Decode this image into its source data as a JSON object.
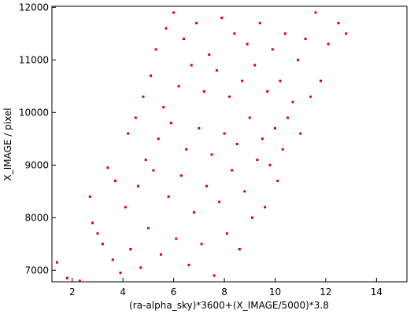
{
  "chart_data": {
    "type": "scatter",
    "title": "",
    "xlabel": "(ra-alpha_sky)*3600+(X_IMAGE/5000)*3.8",
    "ylabel": "X_IMAGE / pixel",
    "xlim": [
      1.2,
      15.2
    ],
    "ylim": [
      6780,
      12020
    ],
    "xticks": [
      2,
      4,
      6,
      8,
      10,
      12,
      14
    ],
    "yticks": [
      7000,
      8000,
      9000,
      10000,
      11000,
      12000
    ],
    "xtick_labels": [
      "2",
      "4",
      "6",
      "8",
      "10",
      "12",
      "14"
    ],
    "ytick_labels": [
      "7000",
      "8000",
      "9000",
      "10000",
      "11000",
      "12000"
    ],
    "grid": false,
    "marker_color": "#dd0000",
    "marker_shape": "square",
    "series": [
      {
        "points": [
          [
            1.4,
            7150
          ],
          [
            1.8,
            6850
          ],
          [
            2.3,
            6800
          ],
          [
            2.8,
            7900
          ],
          [
            2.7,
            8400
          ],
          [
            3.0,
            7700
          ],
          [
            3.2,
            7500
          ],
          [
            3.4,
            8950
          ],
          [
            3.6,
            7200
          ],
          [
            3.7,
            8700
          ],
          [
            3.9,
            6950
          ],
          [
            4.1,
            8200
          ],
          [
            4.3,
            7400
          ],
          [
            4.2,
            9600
          ],
          [
            4.5,
            9900
          ],
          [
            4.6,
            8600
          ],
          [
            4.7,
            7050
          ],
          [
            4.8,
            10300
          ],
          [
            4.9,
            9100
          ],
          [
            5.0,
            7800
          ],
          [
            5.1,
            10700
          ],
          [
            5.2,
            8900
          ],
          [
            5.3,
            11200
          ],
          [
            5.4,
            9500
          ],
          [
            5.5,
            7300
          ],
          [
            5.6,
            10100
          ],
          [
            5.7,
            11600
          ],
          [
            5.8,
            8400
          ],
          [
            5.9,
            9800
          ],
          [
            6.0,
            11900
          ],
          [
            6.1,
            7600
          ],
          [
            6.2,
            10500
          ],
          [
            6.3,
            8800
          ],
          [
            6.4,
            11400
          ],
          [
            6.5,
            9300
          ],
          [
            6.6,
            7100
          ],
          [
            6.7,
            10900
          ],
          [
            6.8,
            8100
          ],
          [
            6.9,
            11700
          ],
          [
            7.0,
            9700
          ],
          [
            7.1,
            7500
          ],
          [
            7.2,
            10400
          ],
          [
            7.3,
            8600
          ],
          [
            7.4,
            11100
          ],
          [
            7.5,
            9200
          ],
          [
            7.6,
            6900
          ],
          [
            7.7,
            10800
          ],
          [
            7.8,
            8300
          ],
          [
            7.9,
            11800
          ],
          [
            8.0,
            9600
          ],
          [
            8.1,
            7700
          ],
          [
            8.2,
            10300
          ],
          [
            8.3,
            8900
          ],
          [
            8.4,
            11500
          ],
          [
            8.5,
            9400
          ],
          [
            8.6,
            7400
          ],
          [
            8.7,
            10600
          ],
          [
            8.8,
            8500
          ],
          [
            8.9,
            11300
          ],
          [
            9.0,
            9900
          ],
          [
            9.1,
            8000
          ],
          [
            9.2,
            10900
          ],
          [
            9.3,
            9100
          ],
          [
            9.4,
            11700
          ],
          [
            9.5,
            9500
          ],
          [
            9.6,
            8200
          ],
          [
            9.7,
            10400
          ],
          [
            9.8,
            9000
          ],
          [
            9.9,
            11200
          ],
          [
            10.0,
            9700
          ],
          [
            10.1,
            8700
          ],
          [
            10.2,
            10600
          ],
          [
            10.3,
            9300
          ],
          [
            10.4,
            11500
          ],
          [
            10.5,
            9900
          ],
          [
            10.7,
            10200
          ],
          [
            10.9,
            11000
          ],
          [
            11.0,
            9600
          ],
          [
            11.2,
            11400
          ],
          [
            11.4,
            10300
          ],
          [
            11.6,
            11900
          ],
          [
            11.8,
            10600
          ],
          [
            12.1,
            11300
          ],
          [
            12.5,
            11700
          ],
          [
            12.8,
            11500
          ]
        ]
      }
    ]
  }
}
